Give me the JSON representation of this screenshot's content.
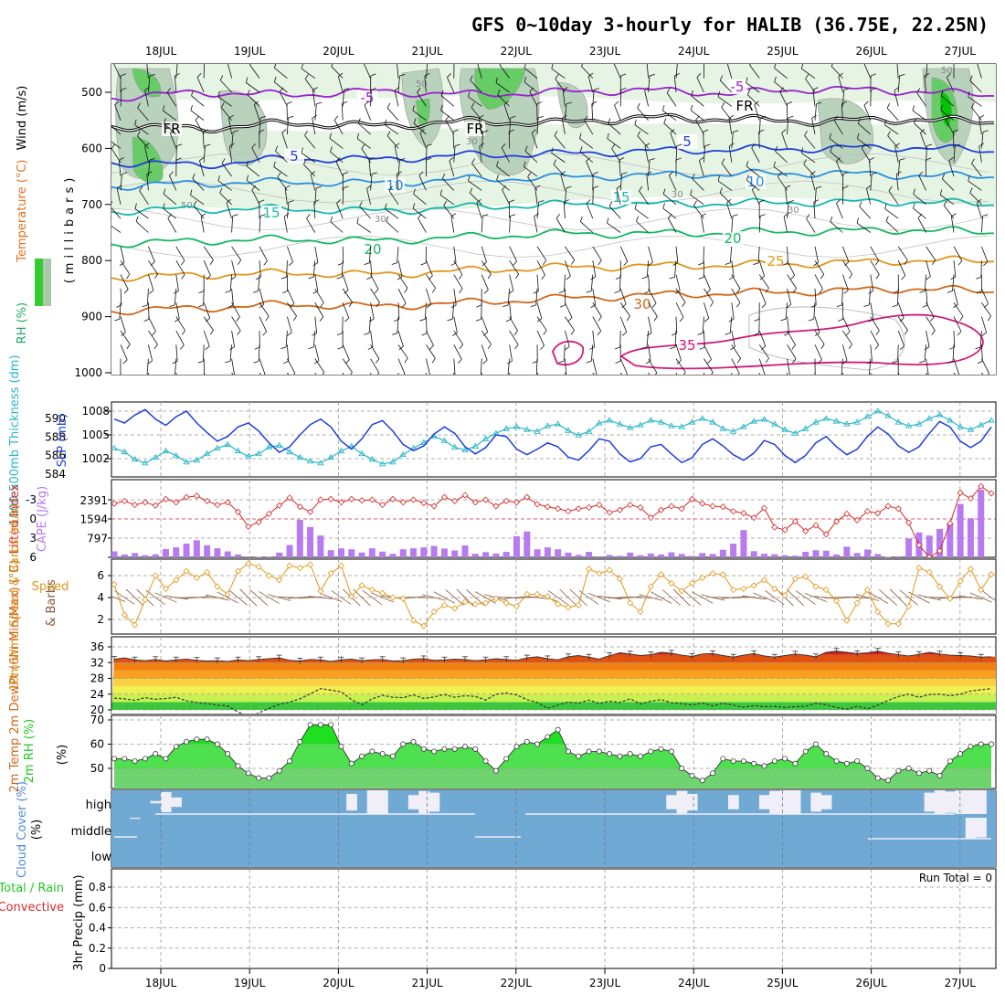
{
  "header": {
    "title": "GFS 0~10day 3-hourly for HALIB (36.75E, 22.25N)"
  },
  "chart_data": {
    "type": "meteogram",
    "dates": [
      "18JUL",
      "19JUL",
      "20JUL",
      "21JUL",
      "22JUL",
      "23JUL",
      "24JUL",
      "25JUL",
      "26JUL",
      "27JUL"
    ],
    "panels": {
      "upper_air": {
        "ylabel_rh": "RH (%)",
        "ylabel_temp": "Temperature (°C)",
        "ylabel_wind": "Wind (m/s)",
        "ylabel_p": "(millibars)",
        "pressure_ticks": [
          "500",
          "600",
          "700",
          "800",
          "900",
          "1000"
        ],
        "contour_labels": [
          "-5",
          "5",
          "10",
          "15",
          "20",
          "25",
          "30",
          "35",
          "FR",
          "50",
          "30"
        ],
        "isotherms": [
          {
            "label": "-5",
            "p": [
              510,
              500,
              505,
              498,
              504,
              500,
              496,
              502,
              494,
              498,
              505
            ]
          },
          {
            "label": "FR",
            "p": [
              560,
              565,
              555,
              560,
              552,
              555,
              545,
              548,
              552,
              548,
              553
            ]
          },
          {
            "label": "5",
            "p": [
              625,
              630,
              618,
              620,
              612,
              610,
              605,
              602,
              600,
              598,
              605
            ]
          },
          {
            "label": "10",
            "p": [
              668,
              662,
              660,
              662,
              655,
              652,
              648,
              646,
              644,
              648,
              650
            ]
          },
          {
            "label": "15",
            "p": [
              712,
              708,
              708,
              712,
              705,
              700,
              700,
              698,
              696,
              695,
              700
            ]
          },
          {
            "label": "20",
            "p": [
              770,
              765,
              762,
              765,
              758,
              752,
              752,
              750,
              748,
              745,
              750
            ]
          },
          {
            "label": "25",
            "p": [
              830,
              826,
              822,
              825,
              818,
              812,
              810,
              808,
              805,
              800,
              800
            ]
          },
          {
            "label": "30",
            "p": [
              890,
              885,
              878,
              882,
              875,
              868,
              862,
              858,
              855,
              850,
              855
            ]
          }
        ]
      },
      "slp_thickness": {
        "ylabel_left": "1000-500mb Thickness (dm)",
        "ylabel_right": "SLP (mb)",
        "ticks_left": [
          "590",
          "588",
          "586",
          "584"
        ],
        "ticks_right": [
          "1008",
          "1005",
          "1002"
        ],
        "slp": [
          1007,
          1006.5,
          1007.5,
          1008.2,
          1007,
          1006.2,
          1007.3,
          1008,
          1006.5,
          1005.3,
          1004.2,
          1004.8,
          1006,
          1006.5,
          1005.5,
          1004,
          1002.8,
          1003.5,
          1005,
          1006.3,
          1007,
          1006,
          1004.2,
          1003.2,
          1004.5,
          1006.3,
          1006.8,
          1005.5,
          1003.8,
          1003,
          1003.6,
          1005.1,
          1006,
          1005.2,
          1003.5,
          1002.6,
          1003.4,
          1005,
          1004.8,
          1003.2,
          1002.5,
          1003.2,
          1004,
          1003.5,
          1002.2,
          1001.8,
          1003,
          1004.5,
          1004.2,
          1002.6,
          1001.6,
          1002,
          1003.5,
          1003.8,
          1002.6,
          1001.5,
          1002.1,
          1003.8,
          1004.5,
          1003.6,
          1002.5,
          1001.8,
          1002.7,
          1004.3,
          1003.8,
          1002.4,
          1001.5,
          1002.4,
          1004,
          1004.8,
          1003.5,
          1002.5,
          1003.2,
          1004.8,
          1006,
          1005.1,
          1003.6,
          1002.8,
          1003.5,
          1005.2,
          1006.7,
          1006,
          1004.2,
          1003.4,
          1004.2,
          1006
        ],
        "thickness": [
          586.8,
          586.4,
          585.6,
          585.2,
          585.8,
          586.5,
          586,
          585.3,
          585.5,
          586.2,
          586.8,
          587.2,
          586.5,
          585.9,
          586.2,
          586.9,
          587.1,
          586.4,
          585.8,
          585.4,
          585.2,
          585.8,
          586.5,
          587,
          586.2,
          585.6,
          585.1,
          585.3,
          586.1,
          586.8,
          587.4,
          588.1,
          587.6,
          586.9,
          586.6,
          587,
          587.8,
          588.4,
          588.9,
          589.1,
          588.8,
          588.6,
          589.2,
          589.4,
          588.7,
          588.2,
          588.6,
          589.5,
          589.8,
          589.4,
          589,
          589.3,
          589.8,
          589.6,
          589.2,
          589.1,
          589.6,
          590,
          589.6,
          588.9,
          588.6,
          589.1,
          589.7,
          589.9,
          589.4,
          588.8,
          588.4,
          588.9,
          589.6,
          590,
          589.7,
          589.4,
          589.6,
          590.2,
          590.8,
          590.3,
          589.6,
          589.2,
          589.4,
          590,
          590.4,
          589.8,
          589.1,
          588.8,
          589.3,
          589.8
        ]
      },
      "li_cape": {
        "ylabel_left": "Lifted Index",
        "ylabel_right": "CAPE (J/kg)",
        "ticks_left": [
          "-3",
          "0",
          "3",
          "6"
        ],
        "ticks_right": [
          "2391",
          "1594",
          "797"
        ],
        "cape": [
          250,
          120,
          180,
          90,
          130,
          350,
          420,
          580,
          720,
          510,
          380,
          250,
          120,
          40,
          20,
          30,
          200,
          520,
          1580,
          1280,
          920,
          300,
          380,
          340,
          200,
          380,
          240,
          150,
          340,
          380,
          420,
          480,
          370,
          290,
          500,
          150,
          220,
          160,
          230,
          890,
          1090,
          340,
          420,
          340,
          200,
          100,
          230,
          40,
          100,
          60,
          200,
          90,
          160,
          120,
          210,
          140,
          60,
          180,
          140,
          320,
          580,
          1150,
          260,
          150,
          130,
          90,
          70,
          230,
          300,
          280,
          120,
          450,
          180,
          330,
          140,
          20,
          40,
          800,
          1050,
          920,
          1200,
          1450,
          2250,
          1650,
          2850
        ],
        "li": [
          -2.4,
          -2.8,
          -2.2,
          -2.6,
          -2.1,
          -3.1,
          -2.6,
          -3.4,
          -3.6,
          -2.8,
          -2.2,
          -2.6,
          -1.1,
          1.2,
          0.5,
          -0.8,
          -2.1,
          -3.3,
          -1.9,
          -1.1,
          -3.0,
          -3.1,
          -2.6,
          -3.1,
          -2.9,
          -3.0,
          -2.2,
          -3.1,
          -2.6,
          -3.0,
          -2.5,
          -2.0,
          -3.4,
          -2.8,
          -3.7,
          -2.6,
          -3.0,
          -2.0,
          -2.8,
          -2.6,
          -3.4,
          -2.3,
          -1.9,
          -1.6,
          -1.2,
          -1.6,
          -1.8,
          -2.2,
          -1.0,
          -1.4,
          -2.2,
          -1.8,
          -0.2,
          -1.4,
          -2.0,
          -1.6,
          -3.1,
          -2.4,
          -2.0,
          -1.9,
          -1.2,
          -0.9,
          -0.2,
          -1.7,
          1.3,
          1.7,
          0.4,
          1.9,
          1.0,
          2.4,
          0.4,
          -0.8,
          0.2,
          -1.2,
          -0.9,
          -2.0,
          -1.6,
          0.6,
          4.1,
          6.0,
          5.0,
          0.7,
          -4.1,
          -3.2,
          -5.1,
          -4.0
        ]
      },
      "wind10m": {
        "ylabel": "10m Wind Speed & Barbs (m/s)",
        "ticks": [
          "6",
          "4",
          "2"
        ],
        "speed": [
          5.2,
          2.4,
          1.5,
          3.8,
          6.0,
          4.8,
          5.6,
          6.4,
          5.8,
          6.3,
          5.0,
          4.3,
          6.4,
          7.1,
          6.8,
          6.0,
          5.6,
          6.9,
          6.7,
          7.0,
          4.6,
          6.2,
          6.9,
          4.1,
          5.1,
          4.7,
          4.4,
          4.0,
          3.9,
          1.9,
          1.4,
          2.7,
          3.3,
          3.0,
          3.6,
          3.4,
          3.5,
          3.9,
          3.5,
          3.2,
          4.3,
          4.3,
          4.1,
          3.4,
          3.1,
          3.3,
          6.6,
          6.2,
          6.5,
          5.7,
          3.5,
          2.7,
          5.0,
          6.1,
          5.3,
          4.6,
          5.3,
          5.8,
          6.2,
          6.1,
          4.7,
          4.8,
          5.1,
          5.6,
          4.8,
          4.2,
          5.7,
          5.9,
          5.0,
          4.7,
          3.7,
          1.9,
          3.5,
          4.7,
          2.7,
          1.6,
          1.6,
          3.2,
          6.7,
          6.3,
          5.0,
          3.9,
          5.5,
          6.6,
          4.7,
          6.1
        ]
      },
      "temp2m": {
        "ylabel": "2m Temp 2m DewPt (6hr Min/Max) (°C)",
        "ticks": [
          "36",
          "32",
          "28",
          "24",
          "20"
        ],
        "tmax": [
          32.9,
          33.2,
          32.7,
          32.5,
          32.8,
          32.4,
          32.7,
          32.9,
          32.6,
          32.4,
          32.5,
          32.3,
          32.7,
          32.5,
          32.8,
          33.0,
          33.2,
          32.6,
          32.4,
          32.8,
          32.7,
          32.3,
          32.7,
          32.9,
          32.5,
          32.7,
          32.8,
          32.4,
          32.5,
          32.9,
          33.0,
          32.6,
          32.7,
          32.9,
          32.8,
          32.5,
          32.7,
          33.0,
          32.8,
          32.6,
          33.2,
          33.5,
          33.0,
          32.7,
          33.5,
          33.8,
          33.4,
          32.9,
          33.8,
          34.5,
          34.2,
          33.8,
          34.0,
          34.6,
          34.4,
          33.9,
          33.6,
          34.2,
          34.3,
          33.8,
          33.4,
          33.9,
          34.3,
          33.7,
          33.4,
          33.8,
          34.2,
          33.9,
          33.5,
          34.6,
          34.9,
          34.6,
          34.3,
          34.5,
          34.9,
          34.4,
          34.0,
          33.7,
          34.1,
          34.6,
          34.2,
          33.9,
          33.8,
          33.7,
          33.4,
          33.5
        ],
        "dewpt": [
          23.0,
          22.8,
          22.4,
          23.1,
          22.7,
          22.9,
          23.2,
          22.3,
          21.9,
          21.6,
          21.2,
          21.0,
          19.5,
          18.4,
          19.2,
          20.4,
          21.4,
          22.0,
          22.8,
          24.1,
          25.4,
          25.0,
          24.6,
          22.6,
          21.3,
          22.8,
          23.7,
          23.2,
          23.1,
          23.8,
          22.9,
          23.3,
          23.9,
          23.2,
          23.6,
          23.4,
          22.5,
          24.0,
          24.3,
          23.8,
          22.6,
          21.9,
          20.4,
          21.2,
          22.0,
          21.7,
          22.5,
          21.6,
          22.2,
          21.9,
          22.8,
          21.5,
          22.2,
          22.6,
          21.8,
          21.6,
          21.2,
          21.8,
          21.0,
          21.7,
          21.2,
          20.7,
          21.1,
          20.8,
          20.9,
          20.6,
          20.8,
          20.9,
          21.7,
          21.3,
          20.6,
          20.2,
          20.9,
          20.3,
          21.2,
          22.4,
          23.4,
          24.0,
          23.2,
          23.9,
          24.0,
          23.6,
          24.0,
          24.8,
          25.1,
          25.4
        ]
      },
      "rh2m": {
        "ylabel": "2m RH (%)",
        "ticks": [
          "70",
          "60",
          "50"
        ],
        "values": [
          54,
          54,
          53,
          54,
          56,
          54,
          59,
          61,
          62,
          62,
          60,
          56,
          51,
          48,
          46,
          46,
          49,
          53,
          61,
          68,
          68,
          68,
          59,
          52,
          55,
          57,
          56,
          55,
          60,
          61,
          58,
          57,
          58,
          58,
          59,
          58,
          53,
          49,
          54,
          59,
          61,
          60,
          63,
          66,
          57,
          55,
          57,
          57,
          56,
          55,
          56,
          55,
          57,
          58,
          57,
          50,
          47,
          45,
          48,
          54,
          53,
          53,
          52,
          51,
          53,
          54,
          52,
          57,
          60,
          56,
          53,
          52,
          53,
          50,
          46,
          45,
          49,
          50,
          48,
          49,
          47,
          53,
          56,
          59,
          60,
          60
        ]
      },
      "clouds": {
        "ylabel": "Cloud Cover (%)",
        "levels": [
          "high",
          "middle",
          "low"
        ],
        "high": [
          0,
          0,
          0,
          0,
          10,
          85,
          40,
          0,
          0,
          0,
          0,
          0,
          0,
          0,
          0,
          0,
          0,
          0,
          0,
          0,
          0,
          0,
          0,
          70,
          0,
          100,
          100,
          0,
          0,
          60,
          95,
          80,
          0,
          0,
          0,
          0,
          0,
          0,
          0,
          0,
          0,
          0,
          0,
          0,
          0,
          0,
          0,
          0,
          0,
          0,
          0,
          0,
          0,
          0,
          60,
          95,
          70,
          0,
          0,
          0,
          60,
          0,
          0,
          60,
          95,
          100,
          100,
          0,
          80,
          60,
          0,
          0,
          0,
          0,
          0,
          0,
          0,
          0,
          0,
          80,
          100,
          90,
          100,
          100,
          100,
          0
        ],
        "middle": [
          0,
          0,
          5,
          0,
          0,
          0,
          0,
          0,
          0,
          0,
          0,
          0,
          0,
          0,
          0,
          0,
          0,
          0,
          0,
          0,
          0,
          0,
          0,
          0,
          0,
          0,
          0,
          0,
          0,
          0,
          0,
          0,
          0,
          0,
          0,
          0,
          0,
          0,
          0,
          0,
          0,
          0,
          0,
          0,
          0,
          0,
          0,
          0,
          0,
          0,
          0,
          0,
          0,
          0,
          0,
          0,
          0,
          0,
          0,
          0,
          0,
          0,
          0,
          0,
          0,
          0,
          0,
          0,
          0,
          0,
          0,
          0,
          0,
          0,
          0,
          0,
          0,
          0,
          0,
          0,
          0,
          0,
          0,
          95,
          90,
          0,
          0
        ],
        "low": [
          0,
          0,
          0,
          0,
          0,
          0,
          0,
          0,
          0,
          0,
          0,
          0,
          0,
          0,
          0,
          0,
          0,
          0,
          0,
          0,
          0,
          0,
          0,
          0,
          0,
          0,
          0,
          0,
          0,
          0,
          0,
          0,
          0,
          0,
          0,
          0,
          0,
          0,
          0,
          0,
          0,
          0,
          0,
          0,
          0,
          0,
          0,
          0,
          0,
          0,
          0,
          0,
          0,
          0,
          0,
          0,
          0,
          0,
          0,
          0,
          0,
          0,
          0,
          0,
          0,
          0,
          0,
          0,
          0,
          0,
          0,
          0,
          0,
          0,
          0,
          0,
          0,
          0,
          0,
          0,
          0,
          0,
          0,
          0,
          0,
          0
        ]
      },
      "precip": {
        "ylabel_total": "Total / Rain",
        "ylabel_conv": "Convective",
        "ylabel": "3hr Precip (mm)",
        "ticks": [
          "0.8",
          "0.6",
          "0.4",
          "0.2",
          "0"
        ],
        "run_total": "Run Total = 0",
        "values": []
      }
    },
    "colors": {
      "purple": "#9a1fd0",
      "blue": "#1f3fd8",
      "lightblue": "#2a8fe0",
      "teal": "#14b8b0",
      "green": "#14b860",
      "orange": "#e28a22",
      "darkorange": "#d0681a",
      "magenta": "#d01a7a",
      "cyan": "#2ab7c8",
      "red": "#d42a2a",
      "cape": "#b87af0",
      "wind": "#e0981a",
      "rh": "#1ec81e",
      "cloud": "#6fa9d4"
    }
  }
}
